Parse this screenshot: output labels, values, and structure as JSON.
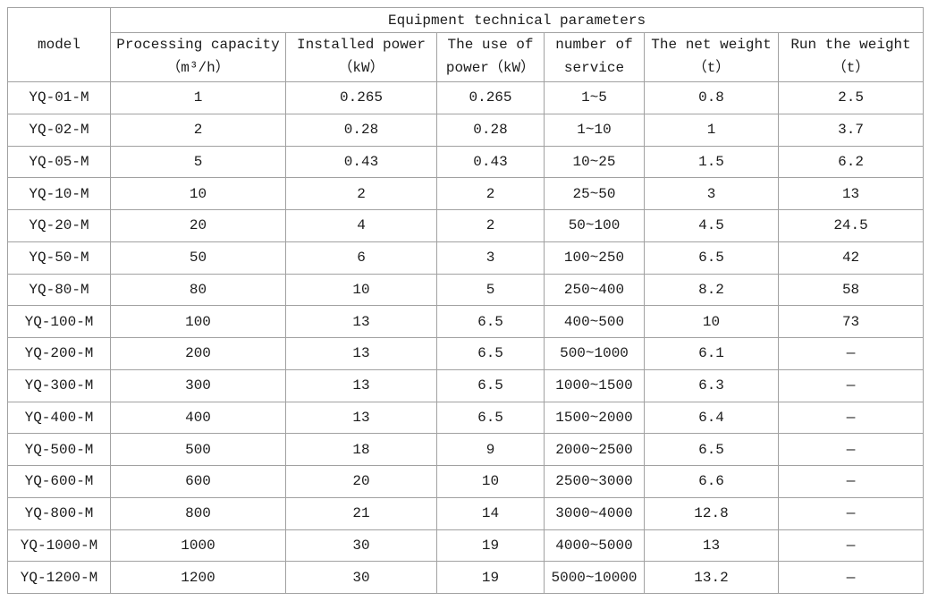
{
  "table": {
    "title": "Equipment technical parameters",
    "model_header": "model",
    "columns": [
      {
        "line1": "Processing capacity",
        "line2": "（m³/h）"
      },
      {
        "line1": "Installed power",
        "line2": "（kW）"
      },
      {
        "line1": "The use of",
        "line2": "power（kW）"
      },
      {
        "line1": "number of",
        "line2": "service"
      },
      {
        "line1": "The net weight",
        "line2": "（t）"
      },
      {
        "line1": "Run the weight",
        "line2": "（t）"
      }
    ],
    "rows": [
      {
        "model": "YQ-01-M",
        "processing_capacity": "1",
        "installed_power": "0.265",
        "use_of_power": "0.265",
        "number_of_service": "1~5",
        "net_weight": "0.8",
        "run_weight": "2.5"
      },
      {
        "model": "YQ-02-M",
        "processing_capacity": "2",
        "installed_power": "0.28",
        "use_of_power": "0.28",
        "number_of_service": "1~10",
        "net_weight": "1",
        "run_weight": "3.7"
      },
      {
        "model": "YQ-05-M",
        "processing_capacity": "5",
        "installed_power": "0.43",
        "use_of_power": "0.43",
        "number_of_service": "10~25",
        "net_weight": "1.5",
        "run_weight": "6.2"
      },
      {
        "model": "YQ-10-M",
        "processing_capacity": "10",
        "installed_power": "2",
        "use_of_power": "2",
        "number_of_service": "25~50",
        "net_weight": "3",
        "run_weight": "13"
      },
      {
        "model": "YQ-20-M",
        "processing_capacity": "20",
        "installed_power": "4",
        "use_of_power": "2",
        "number_of_service": "50~100",
        "net_weight": "4.5",
        "run_weight": "24.5"
      },
      {
        "model": "YQ-50-M",
        "processing_capacity": "50",
        "installed_power": "6",
        "use_of_power": "3",
        "number_of_service": "100~250",
        "net_weight": "6.5",
        "run_weight": "42"
      },
      {
        "model": "YQ-80-M",
        "processing_capacity": "80",
        "installed_power": "10",
        "use_of_power": "5",
        "number_of_service": "250~400",
        "net_weight": "8.2",
        "run_weight": "58"
      },
      {
        "model": "YQ-100-M",
        "processing_capacity": "100",
        "installed_power": "13",
        "use_of_power": "6.5",
        "number_of_service": "400~500",
        "net_weight": "10",
        "run_weight": "73"
      },
      {
        "model": "YQ-200-M",
        "processing_capacity": "200",
        "installed_power": "13",
        "use_of_power": "6.5",
        "number_of_service": "500~1000",
        "net_weight": "6.1",
        "run_weight": "—"
      },
      {
        "model": "YQ-300-M",
        "processing_capacity": "300",
        "installed_power": "13",
        "use_of_power": "6.5",
        "number_of_service": "1000~1500",
        "net_weight": "6.3",
        "run_weight": "—"
      },
      {
        "model": "YQ-400-M",
        "processing_capacity": "400",
        "installed_power": "13",
        "use_of_power": "6.5",
        "number_of_service": "1500~2000",
        "net_weight": "6.4",
        "run_weight": "—"
      },
      {
        "model": "YQ-500-M",
        "processing_capacity": "500",
        "installed_power": "18",
        "use_of_power": "9",
        "number_of_service": "2000~2500",
        "net_weight": "6.5",
        "run_weight": "—"
      },
      {
        "model": "YQ-600-M",
        "processing_capacity": "600",
        "installed_power": "20",
        "use_of_power": "10",
        "number_of_service": "2500~3000",
        "net_weight": "6.6",
        "run_weight": "—"
      },
      {
        "model": "YQ-800-M",
        "processing_capacity": "800",
        "installed_power": "21",
        "use_of_power": "14",
        "number_of_service": "3000~4000",
        "net_weight": "12.8",
        "run_weight": "—"
      },
      {
        "model": "YQ-1000-M",
        "processing_capacity": "1000",
        "installed_power": "30",
        "use_of_power": "19",
        "number_of_service": "4000~5000",
        "net_weight": "13",
        "run_weight": "—"
      },
      {
        "model": "YQ-1200-M",
        "processing_capacity": "1200",
        "installed_power": "30",
        "use_of_power": "19",
        "number_of_service": "5000~10000",
        "net_weight": "13.2",
        "run_weight": "—"
      }
    ]
  },
  "colors": {
    "border": "#a1a1a1",
    "outer_border": "#8f8f8f",
    "text": "#1c1c1c",
    "background": "#ffffff"
  }
}
